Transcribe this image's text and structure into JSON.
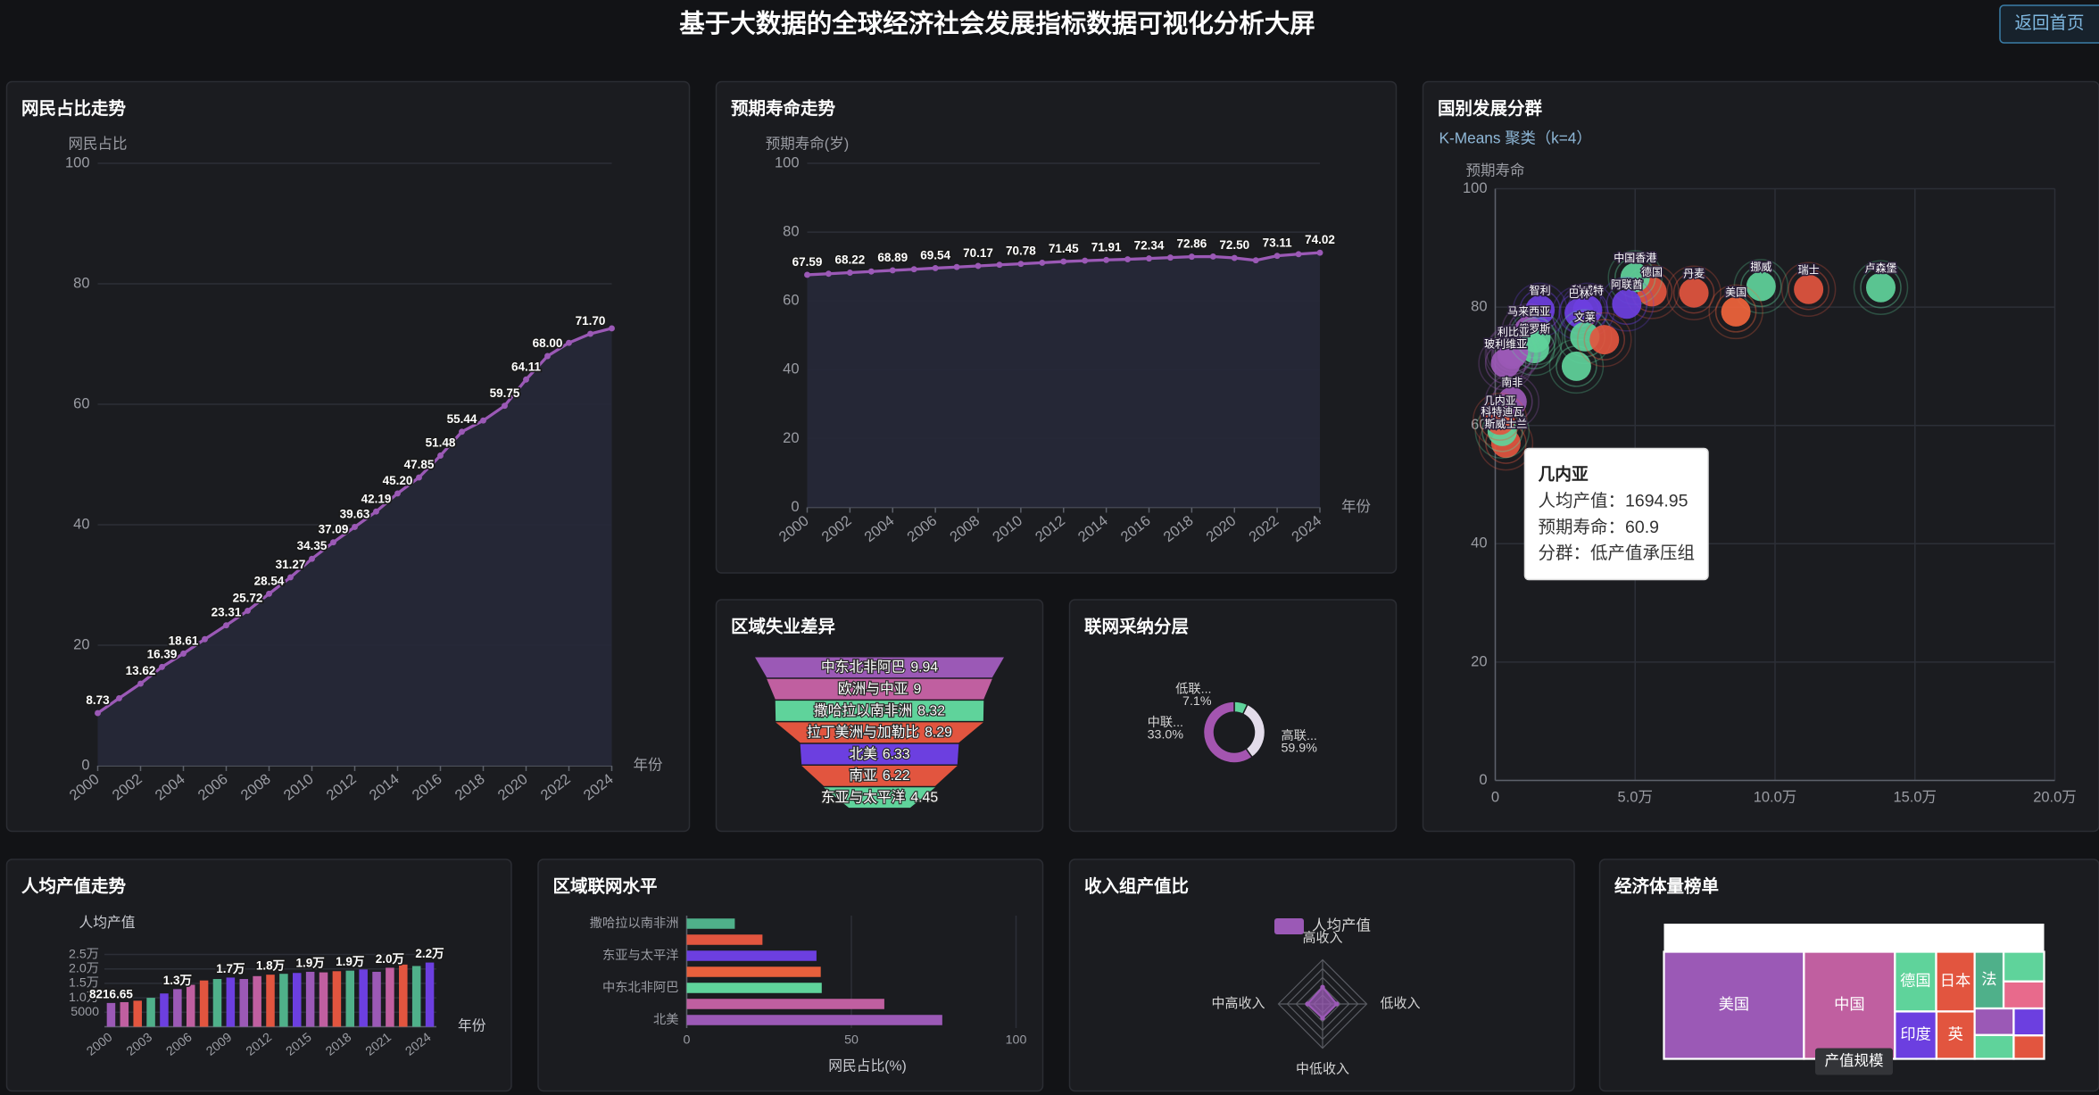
{
  "header": {
    "title": "基于大数据的全球经济社会发展指标数据可视化分析大屏",
    "button": "返回首页"
  },
  "chart_data": [
    {
      "type": "area",
      "title": "网民占比走势",
      "y_label": "网民占比",
      "x_label": "年份",
      "categories": [
        "2000",
        null,
        "2002",
        null,
        "2004",
        null,
        "2006",
        null,
        "2008",
        null,
        "2010",
        null,
        "2012",
        null,
        "2014",
        null,
        "2016",
        null,
        "2018",
        null,
        "2020",
        null,
        "2022",
        null,
        "2024"
      ],
      "values": [
        8.73,
        11.2,
        13.62,
        16.39,
        18.61,
        21.0,
        23.31,
        25.72,
        28.54,
        31.27,
        34.35,
        37.09,
        39.63,
        42.19,
        45.2,
        47.85,
        51.48,
        55.44,
        57.3,
        59.75,
        64.11,
        68.0,
        70.2,
        71.7,
        72.6
      ],
      "value_labels": [
        "8.73",
        null,
        "13.62",
        "16.39",
        "18.61",
        null,
        "23.31",
        "25.72",
        "28.54",
        "31.27",
        "34.35",
        "37.09",
        "39.63",
        "42.19",
        "45.20",
        "47.85",
        "51.48",
        "55.44",
        null,
        "59.75",
        "64.11",
        "68.00",
        null,
        "71.70",
        null
      ],
      "color": "#9b59b6",
      "ylim": [
        0,
        100
      ],
      "yticks": [
        0,
        20,
        40,
        60,
        80,
        100
      ],
      "grid": true
    },
    {
      "type": "area",
      "title": "预期寿命走势",
      "y_label": "预期寿命(岁)",
      "x_label": "年份",
      "categories": [
        "2000",
        null,
        "2002",
        null,
        "2004",
        null,
        "2006",
        null,
        "2008",
        null,
        "2010",
        null,
        "2012",
        null,
        "2014",
        null,
        "2016",
        null,
        "2018",
        null,
        "2020",
        null,
        "2022",
        null,
        "2024"
      ],
      "values": [
        67.59,
        67.9,
        68.22,
        68.55,
        68.89,
        69.2,
        69.54,
        69.85,
        70.17,
        70.5,
        70.78,
        71.1,
        71.45,
        71.7,
        71.91,
        72.1,
        72.34,
        72.6,
        72.86,
        72.9,
        72.5,
        71.8,
        73.11,
        73.6,
        74.02
      ],
      "value_labels": [
        "67.59",
        null,
        "68.22",
        null,
        "68.89",
        null,
        "69.54",
        null,
        "70.17",
        null,
        "70.78",
        null,
        "71.45",
        null,
        "71.91",
        null,
        "72.34",
        null,
        "72.86",
        null,
        "72.50",
        null,
        "73.11",
        null,
        "74.02"
      ],
      "color": "#9b59b6",
      "ylim": [
        0,
        100
      ],
      "yticks": [
        0,
        20,
        40,
        60,
        80,
        100
      ],
      "grid": true
    },
    {
      "type": "scatter",
      "title": "国别发展分群",
      "subtitle": "K-Means 聚类（k=4）",
      "y_label": "预期寿命",
      "xlim": [
        0,
        200000
      ],
      "xticks": [
        0,
        {
          "value": 50000,
          "label": "5.0万"
        },
        {
          "value": 100000,
          "label": "10.0万"
        },
        {
          "value": 150000,
          "label": "15.0万"
        },
        {
          "value": 200000,
          "label": "20.0万"
        }
      ],
      "ylim": [
        0,
        100
      ],
      "yticks": [
        0,
        20,
        40,
        60,
        80,
        100
      ],
      "grid": true,
      "points": {
        "names": [
          "卢森堡",
          "瑞士",
          "挪威",
          "丹麦",
          "美国",
          "德国",
          "中国香港",
          "阿联酋",
          "科威特",
          "巴林",
          "文莱",
          "智利",
          "马来西亚",
          "俄罗斯",
          "不丹",
          "利比亚",
          "玻利维亚",
          "南非",
          "斯威士兰",
          "科特迪瓦",
          "几内亚",
          null,
          null,
          null
        ],
        "x": [
          137800,
          112000,
          95000,
          71000,
          86000,
          56000,
          50000,
          47000,
          33000,
          30000,
          32000,
          16000,
          12000,
          14000,
          6000,
          6500,
          3700,
          6000,
          3800,
          2500,
          1694.95,
          29000,
          39000,
          14500
        ],
        "y": [
          83.3,
          83.0,
          83.5,
          82.4,
          79.2,
          82.6,
          85.0,
          80.5,
          79.5,
          79.0,
          75.0,
          79.5,
          76.0,
          73.0,
          72.0,
          72.5,
          70.5,
          64.0,
          57.0,
          59.0,
          60.9,
          70.0,
          74.5,
          74.8
        ],
        "colors": [
          "#5fd39b",
          "#e2553f",
          "#5fd39b",
          "#e2553f",
          "#f0643c",
          "#e2553f",
          "#5fd39b",
          "#6c3fe0",
          "#6c3fe0",
          "#6c3fe0",
          "#5fd39b",
          "#6c3fe0",
          "#9b59b6",
          "#5fd39b",
          "#9b59b6",
          "#9b59b6",
          "#9b59b6",
          "#9b59b6",
          "#e2553f",
          "#5fd39b",
          "#e2553f",
          "#5fd39b",
          "#e2553f",
          "#5fd39b"
        ]
      },
      "tooltip": {
        "title": "几内亚",
        "lines": [
          "人均产值：1694.95",
          "预期寿命：60.9",
          "分群：低产值承压组"
        ]
      }
    },
    {
      "type": "funnel",
      "title": "区域失业差异",
      "categories": [
        "中东北非阿巴",
        "欧洲与中亚",
        "撒哈拉以南非洲",
        "拉丁美洲与加勒比",
        "北美",
        "南亚",
        "东亚与太平洋"
      ],
      "values": [
        9.94,
        9,
        8.32,
        8.29,
        6.33,
        6.22,
        4.45
      ],
      "colors": [
        "#9b59b6",
        "#c05fa0",
        "#5fd39b",
        "#e2553f",
        "#6c3fe0",
        "#e2553f",
        "#5fd39b"
      ]
    },
    {
      "type": "pie",
      "title": "联网采纳分层",
      "categories": [
        "低联...",
        "中联...",
        "高联..."
      ],
      "values": [
        7.1,
        33,
        59.9
      ],
      "value_labels": [
        "7.1%",
        "33.0%",
        "59.9%"
      ],
      "colors": [
        "#5fd39b",
        "#e3dcea",
        "#a455b0"
      ]
    },
    {
      "type": "bar",
      "title": "人均产值走势",
      "y_label": "人均产值",
      "x_label": "年份",
      "categories": [
        "2000",
        null,
        null,
        "2003",
        null,
        null,
        "2006",
        null,
        null,
        "2009",
        null,
        null,
        "2012",
        null,
        null,
        "2015",
        null,
        null,
        "2018",
        null,
        null,
        "2021",
        null,
        null,
        "2024"
      ],
      "values": [
        8216.65,
        8500,
        9000,
        10000,
        11500,
        13000,
        14500,
        16000,
        16500,
        17000,
        16500,
        17500,
        18000,
        18300,
        18600,
        19000,
        18800,
        19200,
        19400,
        19800,
        19000,
        20400,
        21500,
        21000,
        22200
      ],
      "value_labels": [
        "8216.65",
        null,
        null,
        null,
        null,
        "1.3万",
        null,
        null,
        null,
        "1.7万",
        null,
        null,
        "1.8万",
        null,
        null,
        "1.9万",
        null,
        null,
        "1.9万",
        null,
        null,
        "2.0万",
        null,
        null,
        "2.2万"
      ],
      "colors": [
        "#9b59b6",
        "#c05fa0",
        "#e2553f",
        "#4fb08a",
        "#6c3fe0"
      ],
      "ylim": [
        0,
        25000
      ],
      "yticks": [
        5000,
        {
          "value": 10000,
          "label": "1.0万"
        },
        {
          "value": 15000,
          "label": "1.5万"
        },
        {
          "value": 20000,
          "label": "2.0万"
        },
        {
          "value": 25000,
          "label": "2.5万"
        }
      ],
      "grid": true
    },
    {
      "type": "hbar",
      "title": "区域联网水平",
      "x_label": "网民占比(%)",
      "categories": [
        "撒哈拉以南非洲",
        null,
        "东亚与太平洋",
        null,
        "中东北非阿巴",
        null,
        "北美"
      ],
      "values": [
        14.6,
        23,
        39.4,
        40.7,
        41,
        60,
        77.6
      ],
      "colors": [
        "#4fb08a",
        "#e2553f",
        "#6c3fe0",
        "#e8603c",
        "#5fd39b",
        "#c05fa0",
        "#9b59b6"
      ],
      "xlim": [
        0,
        100
      ],
      "xticks": [
        0,
        50,
        100
      ],
      "grid": true
    },
    {
      "type": "radar",
      "title": "收入组产值比",
      "legend": "人均产值",
      "indicators": [
        "高收入",
        "中高收入",
        "中低收入",
        "低收入"
      ],
      "values": [
        19000,
        17000,
        16000,
        16000
      ],
      "rlim": [
        0,
        50000
      ],
      "color": "#9b59b6"
    },
    {
      "type": "treemap",
      "title": "经济体量榜单",
      "label": "产值规模",
      "categories": [
        "美国",
        "中国",
        "德国",
        "日本",
        "印度",
        "英",
        "法",
        null,
        null,
        null,
        null,
        null,
        null
      ],
      "values": [
        27.4,
        17.8,
        4.5,
        4.2,
        3.6,
        3.3,
        3.0,
        2.2,
        2.0,
        1.9,
        1.7,
        1.5,
        1.3
      ],
      "colors": [
        "#9b59b6",
        "#c05fa0",
        "#5fd39b",
        "#e2553f",
        "#6c3fe0",
        "#e2553f",
        "#4fb08a",
        "#5fd39b",
        "#e86a8c",
        "#9b59b6",
        "#5fd39b",
        "#6c3fe0",
        "#e2553f"
      ]
    }
  ]
}
